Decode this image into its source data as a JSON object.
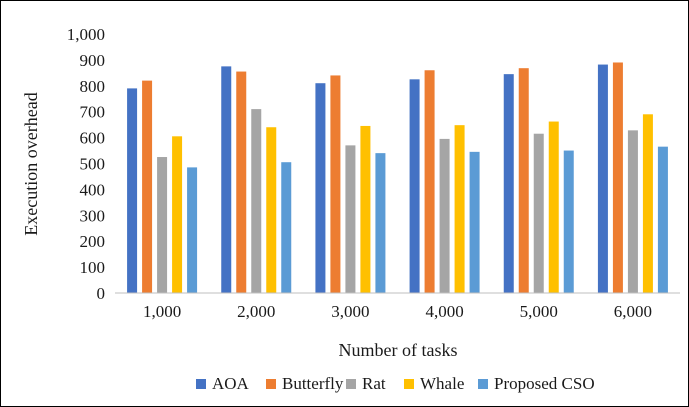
{
  "chart_data": {
    "type": "bar",
    "xlabel": "Number of tasks",
    "ylabel": "Execution overhead",
    "ylim": [
      0,
      1000
    ],
    "yticks": [
      0,
      100,
      200,
      300,
      400,
      500,
      600,
      700,
      800,
      900,
      1000
    ],
    "ytick_labels": [
      "0",
      "100",
      "200",
      "300",
      "400",
      "500",
      "600",
      "700",
      "800",
      "900",
      "1,000"
    ],
    "categories": [
      "1,000",
      "2,000",
      "3,000",
      "4,000",
      "5,000",
      "6,000"
    ],
    "grid": false,
    "legend_position": "bottom",
    "series": [
      {
        "name": "AOA",
        "color": "#4472c4",
        "values": [
          790,
          875,
          810,
          825,
          845,
          882
        ]
      },
      {
        "name": "Butterfly",
        "color": "#ed7d31",
        "values": [
          820,
          855,
          840,
          860,
          868,
          890
        ]
      },
      {
        "name": "Rat",
        "color": "#a5a5a5",
        "values": [
          525,
          710,
          570,
          595,
          615,
          628
        ]
      },
      {
        "name": "Whale",
        "color": "#ffc000",
        "values": [
          605,
          640,
          645,
          648,
          662,
          690
        ]
      },
      {
        "name": "Proposed CSO",
        "color": "#5b9bd5",
        "values": [
          485,
          505,
          540,
          545,
          550,
          565
        ]
      }
    ]
  }
}
